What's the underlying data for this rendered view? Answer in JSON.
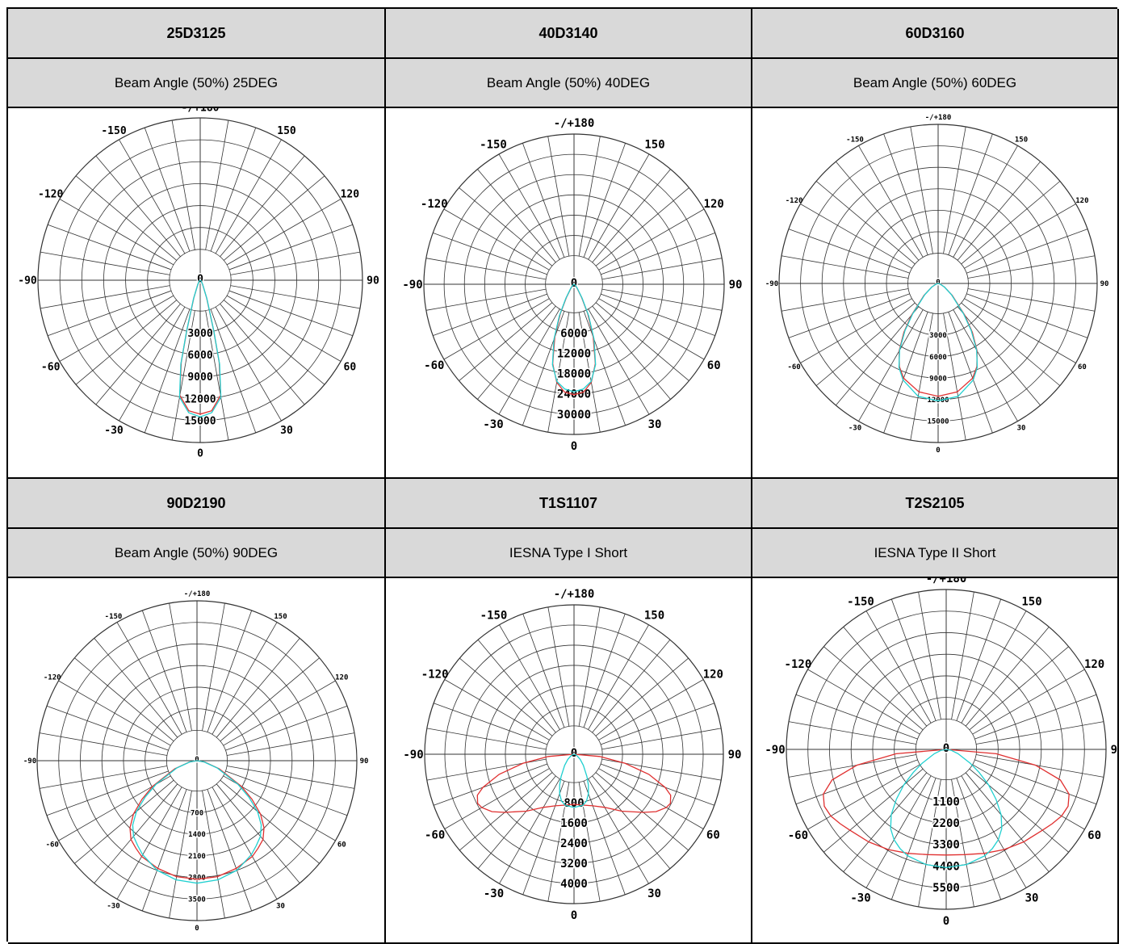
{
  "products": [
    {
      "code": "25D3125",
      "description": "Beam Angle (50%) 25DEG",
      "chart": {
        "type": "polar",
        "angle_labels": [
          "-/+180",
          "-150",
          "150",
          "-120",
          "120",
          "-90",
          "90",
          "-60",
          "60",
          "-30",
          "30",
          "0"
        ],
        "radial_ticks": [
          "0",
          "3000",
          "6000",
          "9000",
          "12000",
          "15000"
        ],
        "rmax": 15000,
        "series": [
          {
            "color": "#e03030",
            "points": [
              [
                0,
                14300
              ],
              [
                5,
                14000
              ],
              [
                10,
                12500
              ],
              [
                13,
                9000
              ],
              [
                15,
                5500
              ],
              [
                20,
                2000
              ],
              [
                30,
                500
              ],
              [
                60,
                100
              ],
              [
                90,
                0
              ]
            ]
          },
          {
            "color": "#20d0d0",
            "points": [
              [
                0,
                14600
              ],
              [
                5,
                14200
              ],
              [
                10,
                12700
              ],
              [
                13,
                9200
              ],
              [
                15,
                5600
              ],
              [
                20,
                2100
              ],
              [
                30,
                500
              ],
              [
                60,
                100
              ],
              [
                90,
                0
              ]
            ]
          }
        ]
      }
    },
    {
      "code": "40D3140",
      "description": "Beam Angle (50%) 40DEG",
      "chart": {
        "type": "polar",
        "angle_labels": [
          "-/+180",
          "-150",
          "150",
          "-120",
          "120",
          "-90",
          "90",
          "-60",
          "60",
          "-30",
          "30",
          "0"
        ],
        "radial_ticks": [
          "0",
          "6000",
          "12000",
          "18000",
          "24000",
          "30000"
        ],
        "rmax": 30000,
        "series": [
          {
            "color": "#e03030",
            "points": [
              [
                0,
                25500
              ],
              [
                5,
                25000
              ],
              [
                10,
                23000
              ],
              [
                15,
                19000
              ],
              [
                20,
                13000
              ],
              [
                25,
                7500
              ],
              [
                30,
                3500
              ],
              [
                40,
                1000
              ],
              [
                60,
                200
              ],
              [
                90,
                0
              ]
            ]
          },
          {
            "color": "#20d0d0",
            "points": [
              [
                0,
                24800
              ],
              [
                5,
                24300
              ],
              [
                10,
                22800
              ],
              [
                15,
                19200
              ],
              [
                20,
                13500
              ],
              [
                25,
                8000
              ],
              [
                30,
                3800
              ],
              [
                40,
                1100
              ],
              [
                60,
                200
              ],
              [
                90,
                0
              ]
            ]
          }
        ]
      }
    },
    {
      "code": "60D3160",
      "description": "Beam Angle (50%) 60DEG",
      "chart": {
        "type": "polar",
        "angle_labels": [
          "-/+180",
          "-150",
          "150",
          "-120",
          "120",
          "-90",
          "90",
          "-60",
          "60",
          "-30",
          "30",
          "0"
        ],
        "radial_ticks": [
          "0",
          "3000",
          "6000",
          "9000",
          "12000",
          "15000"
        ],
        "rmax": 15000,
        "series": [
          {
            "color": "#e03030",
            "points": [
              [
                0,
                12300
              ],
              [
                10,
                12000
              ],
              [
                20,
                11000
              ],
              [
                25,
                10000
              ],
              [
                30,
                8500
              ],
              [
                35,
                6500
              ],
              [
                40,
                4500
              ],
              [
                50,
                2000
              ],
              [
                60,
                800
              ],
              [
                75,
                200
              ],
              [
                90,
                0
              ]
            ]
          },
          {
            "color": "#20d0d0",
            "points": [
              [
                0,
                12800
              ],
              [
                10,
                12500
              ],
              [
                20,
                11200
              ],
              [
                25,
                10100
              ],
              [
                30,
                8400
              ],
              [
                35,
                6300
              ],
              [
                40,
                4300
              ],
              [
                50,
                1900
              ],
              [
                60,
                800
              ],
              [
                75,
                200
              ],
              [
                90,
                0
              ]
            ]
          }
        ]
      }
    },
    {
      "code": "90D2190",
      "description": "Beam Angle (50%) 90DEG",
      "chart": {
        "type": "polar",
        "angle_labels": [
          "-/+180",
          "-150",
          "150",
          "-120",
          "120",
          "-90",
          "90",
          "-60",
          "60",
          "-30",
          "30",
          "0"
        ],
        "radial_ticks": [
          "0",
          "700",
          "1400",
          "2100",
          "2800",
          "3500"
        ],
        "rmax": 3500,
        "series": [
          {
            "color": "#e03030",
            "points": [
              [
                0,
                3000
              ],
              [
                10,
                2980
              ],
              [
                20,
                2900
              ],
              [
                30,
                2800
              ],
              [
                35,
                2700
              ],
              [
                40,
                2600
              ],
              [
                45,
                2400
              ],
              [
                50,
                2100
              ],
              [
                55,
                1700
              ],
              [
                60,
                1300
              ],
              [
                70,
                600
              ],
              [
                80,
                200
              ],
              [
                90,
                0
              ]
            ]
          },
          {
            "color": "#20d0d0",
            "points": [
              [
                0,
                3100
              ],
              [
                10,
                3060
              ],
              [
                20,
                2950
              ],
              [
                30,
                2750
              ],
              [
                35,
                2620
              ],
              [
                40,
                2500
              ],
              [
                45,
                2300
              ],
              [
                50,
                2000
              ],
              [
                55,
                1600
              ],
              [
                60,
                1200
              ],
              [
                70,
                550
              ],
              [
                80,
                180
              ],
              [
                90,
                0
              ]
            ]
          }
        ]
      }
    },
    {
      "code": "T1S1107",
      "description": "IESNA Type I Short",
      "chart": {
        "type": "polar",
        "angle_labels": [
          "-/+180",
          "-150",
          "150",
          "-120",
          "120",
          "-90",
          "90",
          "-60",
          "60",
          "-30",
          "30",
          "0"
        ],
        "radial_ticks": [
          "0",
          "800",
          "1600",
          "2400",
          "3200",
          "4000"
        ],
        "rmax": 4000,
        "series": [
          {
            "color": "#e03030",
            "points": [
              [
                0,
                1550
              ],
              [
                10,
                1600
              ],
              [
                20,
                1700
              ],
              [
                30,
                1900
              ],
              [
                40,
                2300
              ],
              [
                50,
                2800
              ],
              [
                55,
                3100
              ],
              [
                60,
                3300
              ],
              [
                63,
                3350
              ],
              [
                67,
                3250
              ],
              [
                70,
                3000
              ],
              [
                75,
                2400
              ],
              [
                80,
                1600
              ],
              [
                85,
                800
              ],
              [
                90,
                0
              ]
            ]
          },
          {
            "color": "#20d0d0",
            "points": [
              [
                0,
                1650
              ],
              [
                10,
                1600
              ],
              [
                15,
                1500
              ],
              [
                20,
                1300
              ],
              [
                25,
                1050
              ],
              [
                30,
                800
              ],
              [
                40,
                450
              ],
              [
                50,
                250
              ],
              [
                60,
                120
              ],
              [
                75,
                50
              ],
              [
                90,
                0
              ]
            ]
          }
        ]
      }
    },
    {
      "code": "T2S2105",
      "description": "IESNA Type II Short",
      "chart": {
        "type": "polar",
        "angle_labels": [
          "-/+180",
          "-150",
          "150",
          "-120",
          "120",
          "-90",
          "90",
          "-60",
          "60",
          "-30",
          "30",
          "0"
        ],
        "radial_ticks": [
          "0",
          "1100",
          "2200",
          "3300",
          "4400",
          "5500"
        ],
        "rmax": 5500,
        "series": [
          {
            "color": "#e03030",
            "points": [
              [
                0,
                4200
              ],
              [
                10,
                4250
              ],
              [
                20,
                4400
              ],
              [
                30,
                4600
              ],
              [
                40,
                4800
              ],
              [
                50,
                5000
              ],
              [
                55,
                5150
              ],
              [
                60,
                5300
              ],
              [
                65,
                5350
              ],
              [
                70,
                5200
              ],
              [
                75,
                4700
              ],
              [
                80,
                3600
              ],
              [
                85,
                2000
              ],
              [
                90,
                0
              ]
            ]
          },
          {
            "color": "#20d0d0",
            "points": [
              [
                0,
                4700
              ],
              [
                10,
                4650
              ],
              [
                20,
                4500
              ],
              [
                25,
                4350
              ],
              [
                30,
                4150
              ],
              [
                35,
                3850
              ],
              [
                40,
                3400
              ],
              [
                45,
                2800
              ],
              [
                50,
                2200
              ],
              [
                55,
                1600
              ],
              [
                60,
                1100
              ],
              [
                70,
                500
              ],
              [
                80,
                200
              ],
              [
                90,
                0
              ]
            ]
          }
        ]
      }
    }
  ]
}
